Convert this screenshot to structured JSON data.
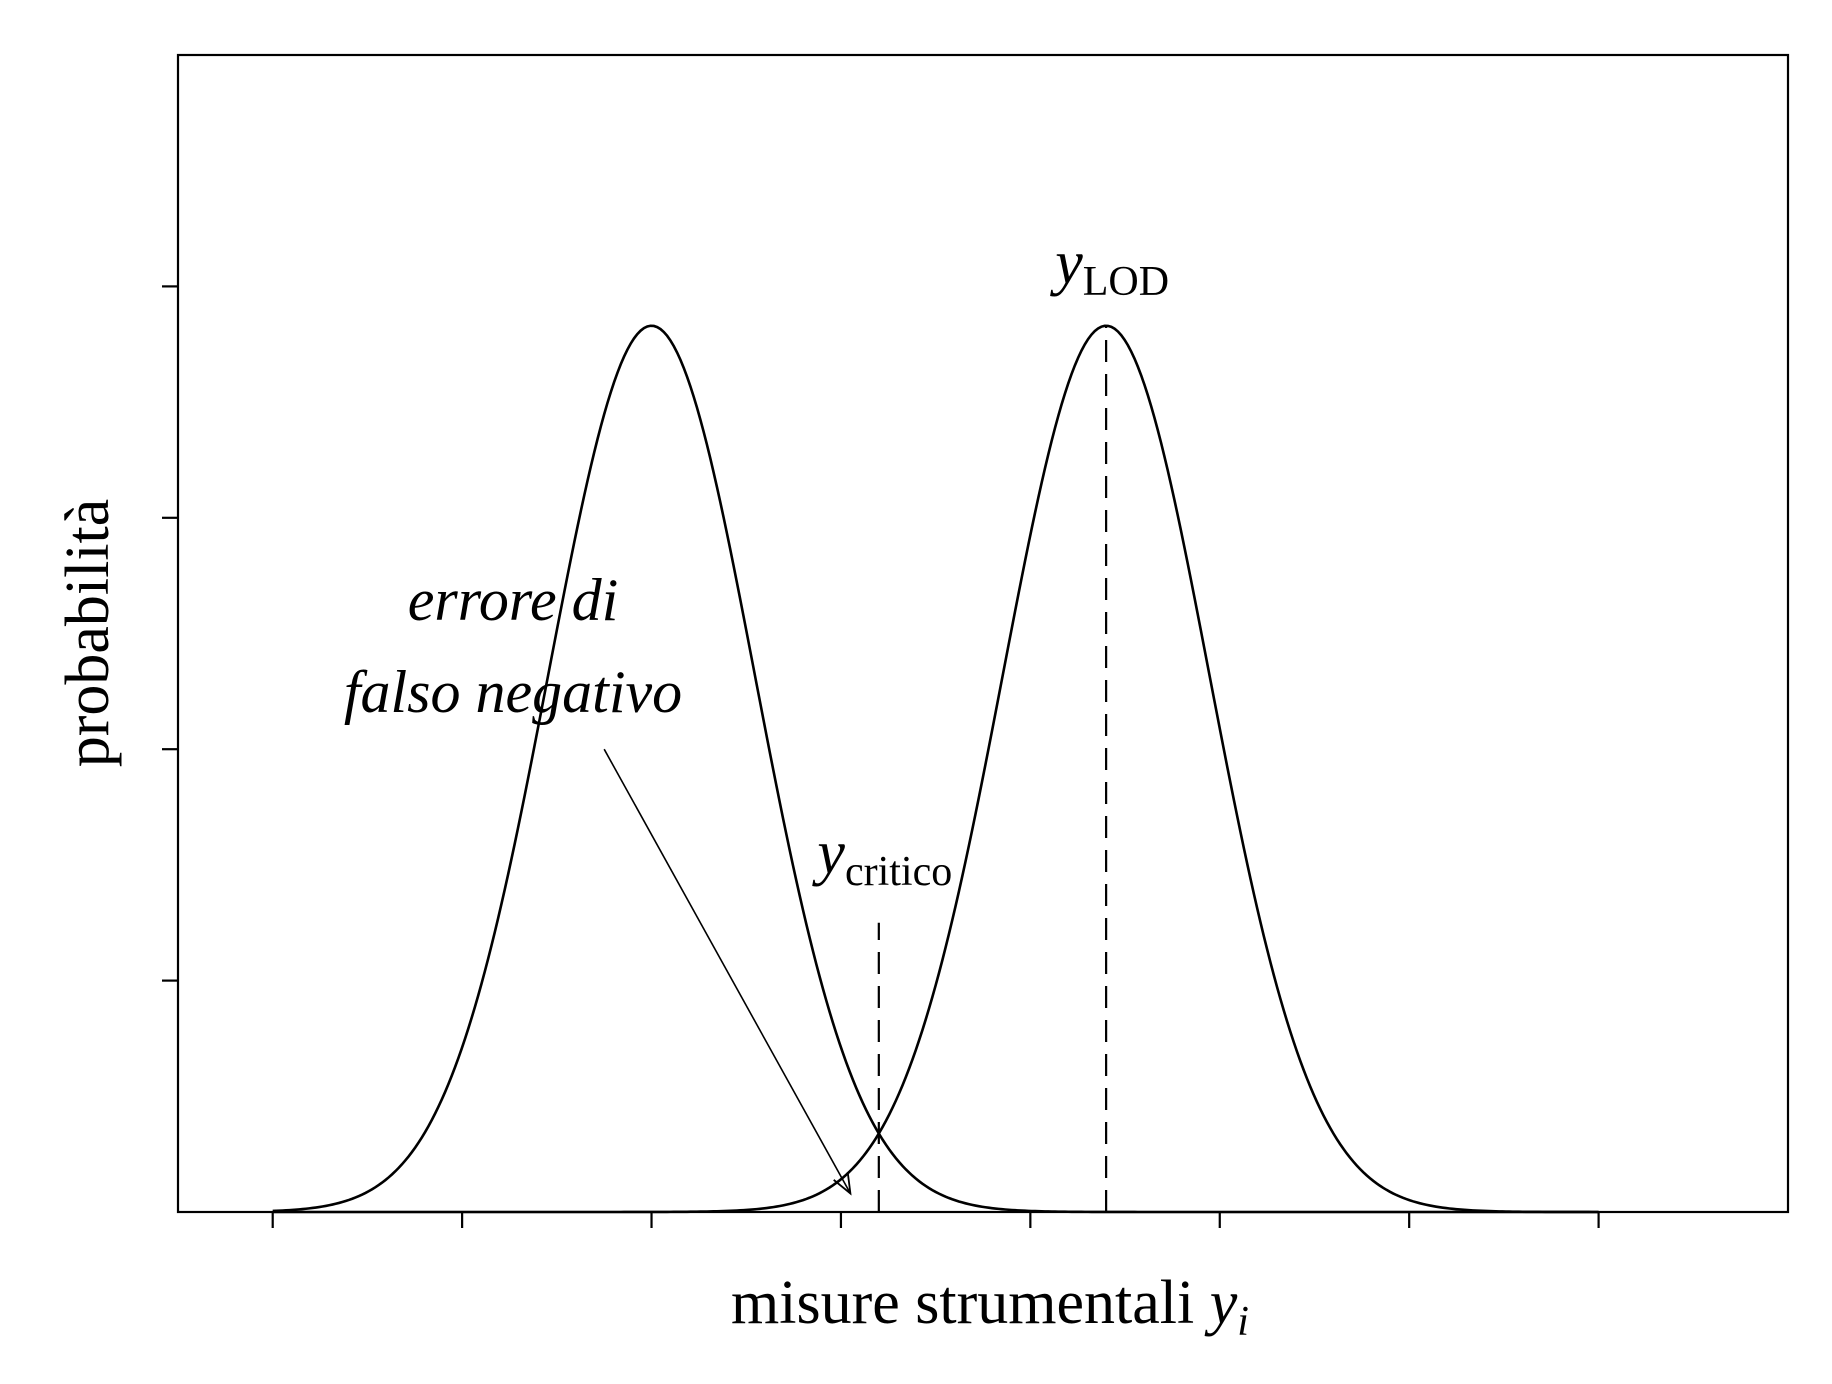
{
  "chart_data": {
    "type": "line",
    "title": "",
    "xlabel": "misure strumentali",
    "xlabel_symbol": "y",
    "xlabel_symbol_subscript": "i",
    "ylabel": "probabilità",
    "xlim": [
      0,
      17
    ],
    "ylim": [
      0,
      5
    ],
    "x_ticks": [
      1,
      3,
      5,
      7,
      9,
      11,
      13,
      15
    ],
    "y_ticks": [
      1,
      2,
      3,
      4
    ],
    "tick_labels_shown": false,
    "grid": false,
    "legend": "none",
    "series": [
      {
        "distribution": "gaussian",
        "mean": 5.0,
        "sigma": 1.09,
        "peak": 3.83
      },
      {
        "distribution": "gaussian",
        "mean": 9.8,
        "sigma": 1.09,
        "peak": 3.83
      }
    ],
    "reference_lines": [
      {
        "x": 7.4,
        "y_from": 0,
        "y_to": 1.25,
        "style": "dashed"
      },
      {
        "x": 9.8,
        "y_from": 0,
        "y_to": 3.83,
        "style": "dashed"
      }
    ],
    "annotations": [
      {
        "text": "y",
        "subscript": "LOD",
        "x": 9.8,
        "y": 4.1
      },
      {
        "text": "y",
        "subscript": "critico",
        "x": 7.4,
        "y": 1.45
      },
      {
        "text_lines": [
          "errore di",
          "falso negativo"
        ],
        "italic": true,
        "arrow_from": [
          4.5,
          2.0
        ],
        "arrow_to": [
          7.1,
          0.08
        ]
      }
    ]
  }
}
